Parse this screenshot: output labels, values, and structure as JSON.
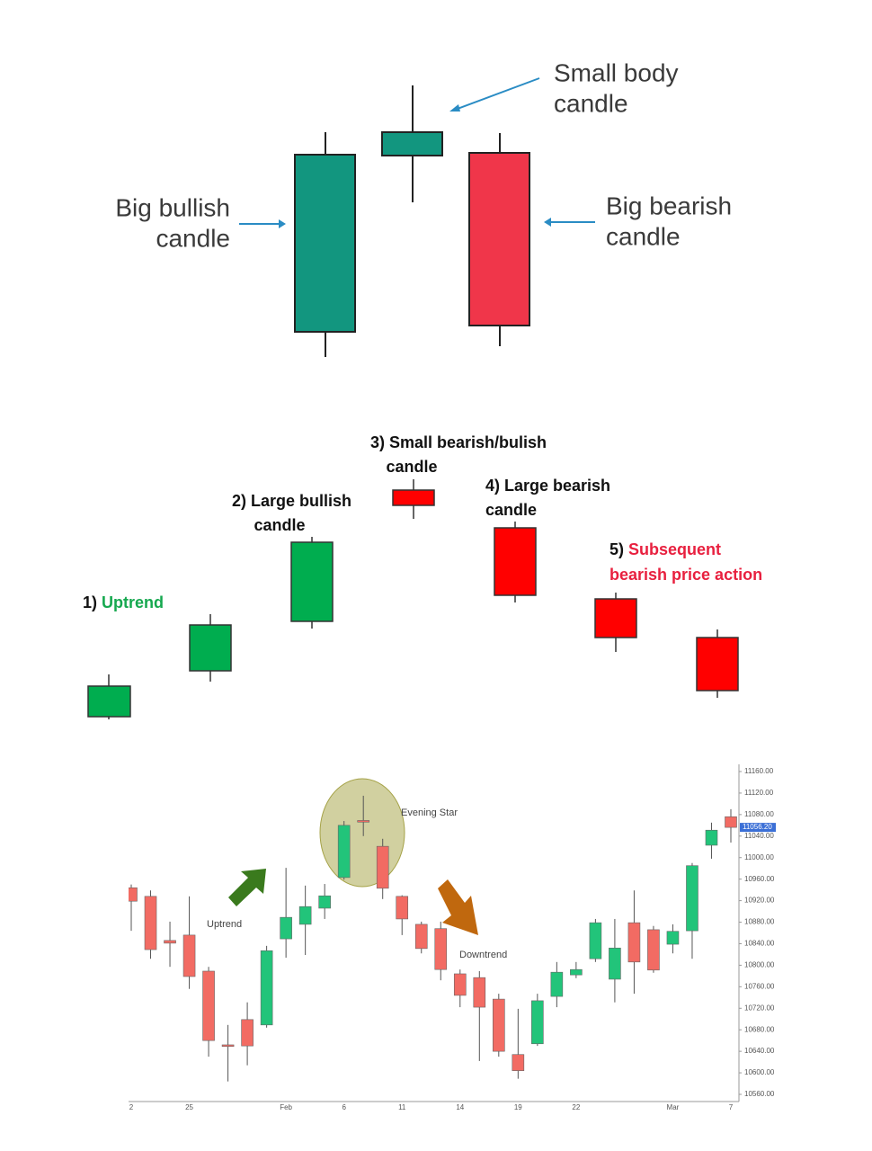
{
  "intro": {
    "small_body": [
      "Small body",
      "candle"
    ],
    "big_bullish": [
      "Big bullish",
      "candle"
    ],
    "big_bearish": [
      "Big bearish",
      "candle"
    ]
  },
  "steps": {
    "uptrend": {
      "number": "1)",
      "text": "Uptrend"
    },
    "large_bullish": [
      "2) Large bullish",
      "candle"
    ],
    "small": [
      "3) Small bearish/bulish",
      "candle"
    ],
    "large_bearish": [
      "4) Large bearish",
      "candle"
    ],
    "subsequent": {
      "number": "5)",
      "lines": [
        "Subsequent",
        "bearish price action"
      ]
    }
  },
  "chart_data": {
    "type": "candlestick",
    "categories": [
      "2",
      null,
      null,
      "25",
      null,
      null,
      null,
      null,
      "Feb",
      null,
      null,
      "6",
      null,
      null,
      "11",
      null,
      null,
      "14",
      null,
      null,
      "19",
      null,
      null,
      "22",
      null,
      null,
      null,
      null,
      "Mar",
      null,
      null,
      "7"
    ],
    "open": [
      10944,
      10928,
      10846,
      10856,
      10789,
      10652,
      10699,
      10689,
      10849,
      10876,
      10906,
      10963,
      11069,
      11021,
      10928,
      10876,
      10868,
      10784,
      10777,
      10737,
      10634,
      10654,
      10742,
      10782,
      10812,
      10774,
      10879,
      10866,
      10839,
      10864,
      11023,
      11076
    ],
    "high": [
      10950,
      10939,
      10881,
      10928,
      10797,
      10689,
      10731,
      10836,
      10981,
      10948,
      10951,
      11068,
      11115,
      11035,
      10930,
      10881,
      10881,
      10792,
      10789,
      10747,
      10719,
      10747,
      10806,
      10806,
      10886,
      10886,
      10939,
      10873,
      10876,
      10990,
      11065,
      11090
    ],
    "low": [
      10864,
      10812,
      10797,
      10756,
      10630,
      10584,
      10614,
      10684,
      10814,
      10819,
      10886,
      10959,
      11040,
      10923,
      10856,
      10822,
      10772,
      10722,
      10622,
      10630,
      10589,
      10650,
      10722,
      10776,
      10806,
      10731,
      10747,
      10786,
      10822,
      10812,
      10998,
      11028
    ],
    "close": [
      10919,
      10829,
      10841,
      10779,
      10660,
      10649,
      10650,
      10827,
      10889,
      10909,
      10929,
      11060,
      11066,
      10943,
      10886,
      10831,
      10792,
      10744,
      10722,
      10640,
      10604,
      10734,
      10787,
      10792,
      10879,
      10832,
      10806,
      10791,
      10863,
      10985,
      11051,
      11056.2
    ],
    "up_color": "#22c47a",
    "down_color": "#f26b63",
    "ylim": [
      10560,
      11160
    ],
    "yticks": [
      {
        "value": 10560,
        "label": "10560.00"
      },
      {
        "value": 10600,
        "label": "10600.00"
      },
      {
        "value": 10640,
        "label": "10640.00"
      },
      {
        "value": 10680,
        "label": "10680.00"
      },
      {
        "value": 10720,
        "label": "10720.00"
      },
      {
        "value": 10760,
        "label": "10760.00"
      },
      {
        "value": 10800,
        "label": "10800.00"
      },
      {
        "value": 10840,
        "label": "10840.00"
      },
      {
        "value": 10880,
        "label": "10880.00"
      },
      {
        "value": 10920,
        "label": "10920.00"
      },
      {
        "value": 10960,
        "label": "10960.00"
      },
      {
        "value": 11000,
        "label": "11000.00"
      },
      {
        "value": 11040,
        "label": "11040.00"
      },
      {
        "value": 11080,
        "label": "11080.00"
      },
      {
        "value": 11120,
        "label": "11120.00"
      },
      {
        "value": 11160,
        "label": "11160.00"
      }
    ],
    "price_tag": {
      "value": 11056.2,
      "label": "11056.20"
    },
    "annotations": {
      "pattern": "Evening Star",
      "uptrend": "Uptrend",
      "downtrend": "Downtrend"
    }
  }
}
